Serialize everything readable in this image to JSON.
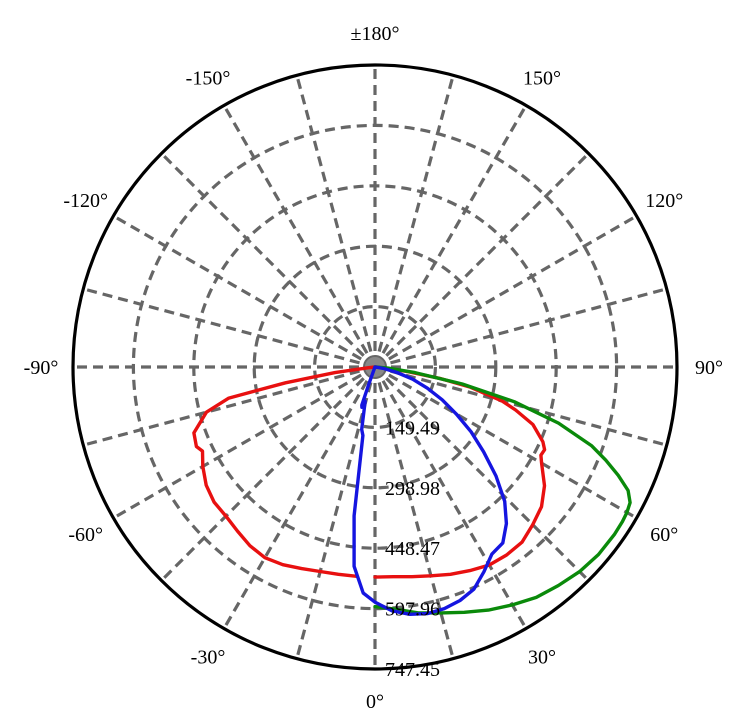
{
  "chart_data": {
    "type": "polar",
    "title": "",
    "angle_labels": [
      {
        "angle": 0,
        "label": "0°"
      },
      {
        "angle": 30,
        "label": "30°"
      },
      {
        "angle": 60,
        "label": "60°"
      },
      {
        "angle": 90,
        "label": "90°"
      },
      {
        "angle": 120,
        "label": "120°"
      },
      {
        "angle": 150,
        "label": "150°"
      },
      {
        "angle": 180,
        "label": "±180°"
      },
      {
        "angle": -150,
        "label": "-150°"
      },
      {
        "angle": -120,
        "label": "-120°"
      },
      {
        "angle": -90,
        "label": "-90°"
      },
      {
        "angle": -60,
        "label": "-60°"
      },
      {
        "angle": -30,
        "label": "-30°"
      }
    ],
    "radial_ticks": [
      149.49,
      298.98,
      448.47,
      597.96,
      747.45
    ],
    "radial_tick_labels": [
      "149.49",
      "298.98",
      "448.47",
      "597.96",
      "747.45"
    ],
    "rmax": 747.45,
    "angular_grid_step": 15,
    "grid": true,
    "series": [
      {
        "color": "#e81010",
        "points": [
          [
            0,
            520
          ],
          [
            5,
            521
          ],
          [
            10,
            527
          ],
          [
            15,
            535
          ],
          [
            20,
            546
          ],
          [
            25,
            556
          ],
          [
            30,
            566
          ],
          [
            35,
            568
          ],
          [
            40,
            566
          ],
          [
            45,
            552
          ],
          [
            50,
            538
          ],
          [
            55,
            512
          ],
          [
            60,
            476
          ],
          [
            62,
            465
          ],
          [
            64,
            467
          ],
          [
            66,
            455
          ],
          [
            70,
            416
          ],
          [
            73,
            364
          ],
          [
            75,
            326
          ],
          [
            78,
            242
          ],
          [
            80,
            163
          ],
          [
            82,
            80
          ],
          [
            84,
            18
          ],
          [
            90,
            0
          ],
          [
            -90,
            0
          ],
          [
            -84,
            18
          ],
          [
            -82,
            100
          ],
          [
            -80,
            225
          ],
          [
            -78,
            370
          ],
          [
            -75,
            432
          ],
          [
            -70,
            477
          ],
          [
            -66,
            484
          ],
          [
            -64,
            475
          ],
          [
            -60,
            492
          ],
          [
            -55,
            510
          ],
          [
            -50,
            520
          ],
          [
            -45,
            522
          ],
          [
            -40,
            530
          ],
          [
            -35,
            540
          ],
          [
            -30,
            545
          ],
          [
            -25,
            540
          ],
          [
            -20,
            531
          ],
          [
            -15,
            524
          ],
          [
            -10,
            521
          ],
          [
            -5,
            520
          ]
        ]
      },
      {
        "color": "#0a8a0a",
        "points": [
          [
            0,
            593
          ],
          [
            5,
            602
          ],
          [
            10,
            618
          ],
          [
            15,
            630
          ],
          [
            20,
            646
          ],
          [
            25,
            664
          ],
          [
            30,
            680
          ],
          [
            35,
            696
          ],
          [
            40,
            706
          ],
          [
            45,
            716
          ],
          [
            50,
            722
          ],
          [
            55,
            723
          ],
          [
            58,
            722
          ],
          [
            60,
            720
          ],
          [
            62,
            715
          ],
          [
            64,
            697
          ],
          [
            66,
            659
          ],
          [
            68,
            616
          ],
          [
            70,
            571
          ],
          [
            73,
            475
          ],
          [
            76,
            355
          ],
          [
            79,
            220
          ],
          [
            82,
            100
          ],
          [
            85,
            32
          ],
          [
            88,
            2
          ],
          [
            90,
            0
          ]
        ]
      },
      {
        "color": "#1515e0",
        "points": [
          [
            0,
            582
          ],
          [
            4,
            605
          ],
          [
            8,
            618
          ],
          [
            12,
            624
          ],
          [
            16,
            622
          ],
          [
            20,
            615
          ],
          [
            24,
            602
          ],
          [
            28,
            574
          ],
          [
            32,
            546
          ],
          [
            36,
            538
          ],
          [
            40,
            506
          ],
          [
            44,
            462
          ],
          [
            48,
            403
          ],
          [
            52,
            341
          ],
          [
            56,
            287
          ],
          [
            60,
            232
          ],
          [
            64,
            185
          ],
          [
            68,
            140
          ],
          [
            72,
            98
          ],
          [
            76,
            56
          ],
          [
            80,
            22
          ],
          [
            84,
            4
          ],
          [
            88,
            0
          ],
          [
            90,
            0
          ],
          [
            -22,
            1
          ],
          [
            -20,
            45
          ],
          [
            -19,
            100
          ],
          [
            -18,
            105
          ],
          [
            -16,
            88
          ],
          [
            -12,
            158
          ],
          [
            -10,
            172
          ],
          [
            -8,
            372
          ],
          [
            -6,
            496
          ],
          [
            -3,
            560
          ],
          [
            0,
            582
          ]
        ]
      }
    ]
  }
}
